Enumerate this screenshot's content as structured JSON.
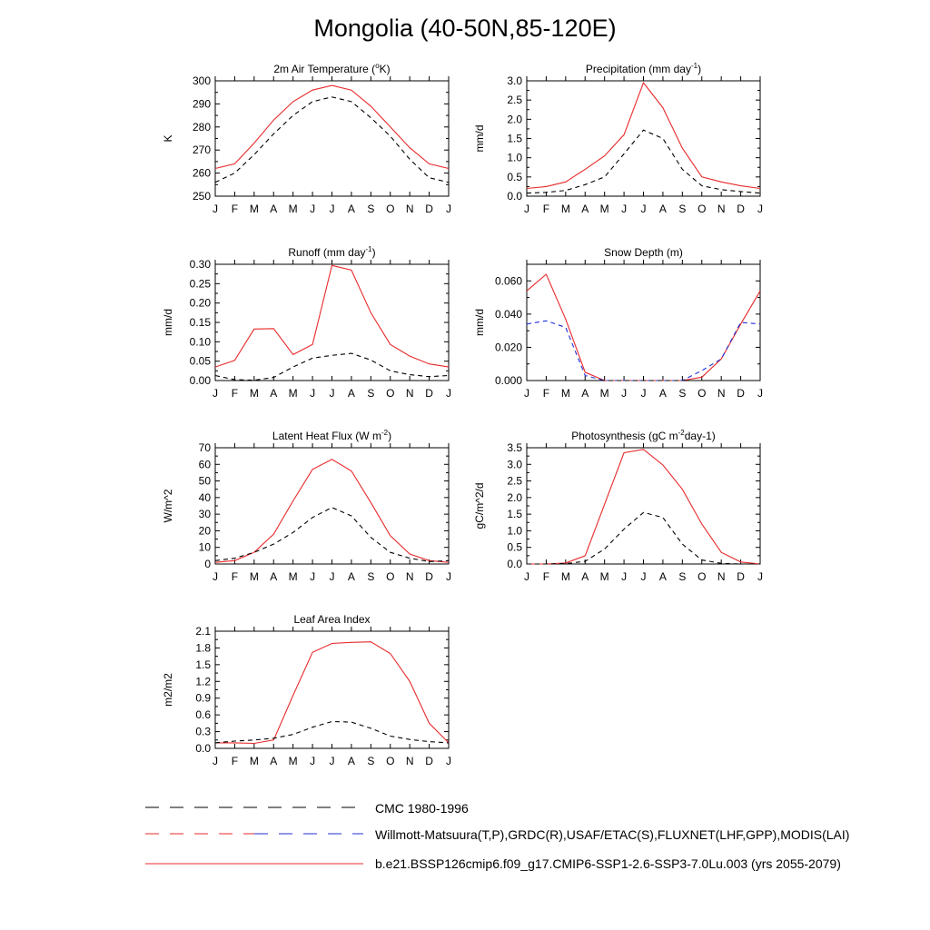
{
  "title": "Mongolia (40-50N,85-120E)",
  "months": [
    "J",
    "F",
    "M",
    "A",
    "M",
    "J",
    "J",
    "A",
    "S",
    "O",
    "N",
    "D",
    "J"
  ],
  "colors": {
    "model": "#e8292b",
    "obs": "#000000",
    "obs2": "#1f2fd6",
    "axis": "#000000"
  },
  "legend": [
    {
      "label": "CMC 1980-1996",
      "style": "dashed",
      "colors": [
        "#000000"
      ]
    },
    {
      "label": "Willmott-Matsuura(T,P),GRDC(R),USAF/ETAC(S),FLUXNET(LHF,GPP),MODIS(LAI)",
      "style": "dashed",
      "colors": [
        "#e8292b",
        "#1f2fd6"
      ]
    },
    {
      "label": "b.e21.BSSP126cmip6.f09_g17.CMIP6-SSP1-2.6-SSP3-7.0Lu.003 (yrs 2055-2079)",
      "style": "solid",
      "colors": [
        "#e8292b"
      ]
    }
  ],
  "chart_data": [
    {
      "type": "line",
      "title": "2m Air Temperature (°K)",
      "ylabel": "K",
      "ylim": [
        250,
        300
      ],
      "yticks": [
        "250",
        "260",
        "270",
        "280",
        "290",
        "300"
      ],
      "series": [
        {
          "style": "solid",
          "color": "#e8292b",
          "values": [
            262,
            264,
            273,
            283,
            291,
            296,
            298,
            296,
            289,
            280,
            271,
            264,
            262
          ]
        },
        {
          "style": "dashed",
          "color": "#000000",
          "values": [
            256,
            260,
            268,
            277,
            285,
            291,
            293,
            291,
            284,
            276,
            266,
            258,
            256
          ]
        }
      ]
    },
    {
      "type": "line",
      "title": "Precipitation (mm day-1)",
      "ylabel": "mm/d",
      "ylim": [
        0,
        3
      ],
      "yticks": [
        "0.0",
        "0.5",
        "1.0",
        "1.5",
        "2.0",
        "2.5",
        "3.0"
      ],
      "series": [
        {
          "style": "solid",
          "color": "#e8292b",
          "values": [
            0.2,
            0.25,
            0.37,
            0.7,
            1.05,
            1.6,
            2.95,
            2.3,
            1.25,
            0.5,
            0.37,
            0.27,
            0.2
          ]
        },
        {
          "style": "dashed",
          "color": "#000000",
          "values": [
            0.08,
            0.1,
            0.15,
            0.3,
            0.5,
            1.1,
            1.72,
            1.5,
            0.7,
            0.27,
            0.17,
            0.12,
            0.08
          ]
        }
      ]
    },
    {
      "type": "line",
      "title": "Runoff (mm day-1)",
      "ylabel": "mm/d",
      "ylim": [
        0,
        0.3
      ],
      "yticks": [
        "0.00",
        "0.05",
        "0.10",
        "0.15",
        "0.20",
        "0.25",
        "0.30"
      ],
      "series": [
        {
          "style": "solid",
          "color": "#e8292b",
          "values": [
            0.035,
            0.052,
            0.133,
            0.134,
            0.067,
            0.093,
            0.297,
            0.285,
            0.175,
            0.093,
            0.063,
            0.043,
            0.035
          ]
        },
        {
          "style": "dashed",
          "color": "#000000",
          "values": [
            0.013,
            0.002,
            0.001,
            0.008,
            0.035,
            0.058,
            0.065,
            0.07,
            0.053,
            0.025,
            0.015,
            0.01,
            0.013
          ]
        }
      ]
    },
    {
      "type": "line",
      "title": "Snow Depth (m)",
      "ylabel": "mm/d",
      "ylim": [
        0,
        0.07
      ],
      "yticks": [
        "0.000",
        "0.020",
        "0.040",
        "0.060"
      ],
      "series": [
        {
          "style": "solid",
          "color": "#e8292b",
          "values": [
            0.054,
            0.064,
            0.037,
            0.005,
            0.0,
            0.0,
            0.0,
            0.0,
            0.0,
            0.002,
            0.013,
            0.034,
            0.054
          ]
        },
        {
          "style": "dashed",
          "color": "#1f2fd6",
          "values": [
            0.034,
            0.036,
            0.032,
            0.003,
            0.0,
            0.0,
            0.0,
            0.0,
            0.0,
            0.006,
            0.013,
            0.035,
            0.034
          ]
        },
        {
          "style": "dashed",
          "color": "#000000",
          "values": [
            0.0,
            0.0,
            0.0,
            0.0,
            0.0,
            0.0,
            0.0,
            0.0,
            0.0,
            0.0,
            0.0,
            0.0,
            0.0
          ]
        }
      ]
    },
    {
      "type": "line",
      "title": "Latent Heat Flux (W m-2)",
      "ylabel": "W/m^2",
      "ylim": [
        0,
        70
      ],
      "yticks": [
        "0",
        "10",
        "20",
        "30",
        "40",
        "50",
        "60",
        "70"
      ],
      "series": [
        {
          "style": "solid",
          "color": "#e8292b",
          "values": [
            1,
            2,
            7,
            18,
            38,
            57,
            63,
            56,
            37,
            17,
            6,
            2,
            1
          ]
        },
        {
          "style": "dashed",
          "color": "#000000",
          "values": [
            2,
            3.5,
            7,
            12,
            19,
            28,
            34,
            29,
            16,
            7,
            3.5,
            1.5,
            2
          ]
        }
      ]
    },
    {
      "type": "line",
      "title": "Photosynthesis (gC m-2day-1)",
      "ylabel": "gC/m^2/d",
      "ylim": [
        0,
        3.5
      ],
      "yticks": [
        "0.0",
        "0.5",
        "1.0",
        "1.5",
        "2.0",
        "2.5",
        "3.0",
        "3.5"
      ],
      "series": [
        {
          "style": "solid",
          "color": "#e8292b",
          "values": [
            0.0,
            0.0,
            0.03,
            0.25,
            1.8,
            3.35,
            3.45,
            2.98,
            2.25,
            1.2,
            0.35,
            0.06,
            0.0
          ]
        },
        {
          "style": "dashed",
          "color": "#000000",
          "values": [
            0.0,
            0.0,
            0.01,
            0.08,
            0.45,
            1.05,
            1.55,
            1.4,
            0.6,
            0.12,
            0.02,
            0.0,
            0.0
          ]
        }
      ]
    },
    {
      "type": "line",
      "title": "Leaf Area Index",
      "ylabel": "m2/m2",
      "ylim": [
        0,
        2.1
      ],
      "yticks": [
        "0.0",
        "0.3",
        "0.6",
        "0.9",
        "1.2",
        "1.5",
        "1.8",
        "2.1"
      ],
      "series": [
        {
          "style": "solid",
          "color": "#e8292b",
          "values": [
            0.1,
            0.1,
            0.09,
            0.15,
            0.95,
            1.72,
            1.88,
            1.9,
            1.91,
            1.7,
            1.2,
            0.45,
            0.1
          ]
        },
        {
          "style": "dashed",
          "color": "#000000",
          "values": [
            0.1,
            0.13,
            0.15,
            0.18,
            0.25,
            0.38,
            0.48,
            0.47,
            0.36,
            0.22,
            0.16,
            0.12,
            0.1
          ]
        }
      ]
    }
  ]
}
